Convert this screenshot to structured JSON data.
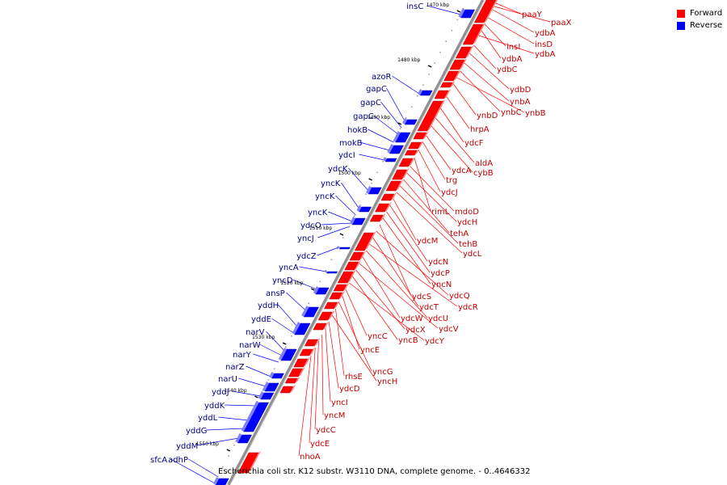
{
  "caption": "Escherichia coli str. K12 substr. W3110 DNA, complete genome. - 0..4646332",
  "legend": [
    {
      "label": "Forward",
      "color": "#ff0000"
    },
    {
      "label": "Reverse",
      "color": "#0000ff"
    }
  ],
  "colors": {
    "forward": "#ff0000",
    "reverse": "#0000ff",
    "axis": "#808080"
  },
  "ticks": [
    "1470 kbp",
    "1480 kbp",
    "1490 kbp",
    "1500 kbp",
    "1510 kbp",
    "1520 kbp",
    "1530 kbp",
    "1540 kbp",
    "1550 kbp"
  ],
  "reverse_genes": [
    "insC",
    "azoR",
    "gapC",
    "gapC",
    "gapC",
    "hokB",
    "mokB",
    "ydcI",
    "ydcK",
    "yncK",
    "yncK",
    "yncK",
    "ydcO",
    "yncJ",
    "ydcZ",
    "yncA",
    "yncD",
    "ansP",
    "yddH",
    "yddE",
    "narV",
    "narW",
    "narY",
    "narZ",
    "narU",
    "yddJ",
    "yddK",
    "yddL",
    "yddG",
    "yddM",
    "adhP",
    "sfcA"
  ],
  "forward_genes": [
    "paaY",
    "paaX",
    "ydbA",
    "insD",
    "insI",
    "ydbA",
    "ydbA",
    "ydbC",
    "ydbD",
    "ynbA",
    "ynbC",
    "ynbB",
    "ynbD",
    "hrpA",
    "ydcF",
    "aldA",
    "cybB",
    "ydcA",
    "trg",
    "ydcJ",
    "rimL",
    "mdoD",
    "ydcH",
    "tehA",
    "tehB",
    "ydcL",
    "ydcM",
    "ydcN",
    "ydcP",
    "yncN",
    "ydcS",
    "ydcQ",
    "ydcT",
    "ydcR",
    "ydcU",
    "ydcW",
    "ydcV",
    "ydcX",
    "yncB",
    "ydcY",
    "yncC",
    "yncE",
    "yncG",
    "rhsE",
    "yncH",
    "ydcD",
    "yncI",
    "yncM",
    "ydcC",
    "ydcE",
    "nhoA"
  ]
}
